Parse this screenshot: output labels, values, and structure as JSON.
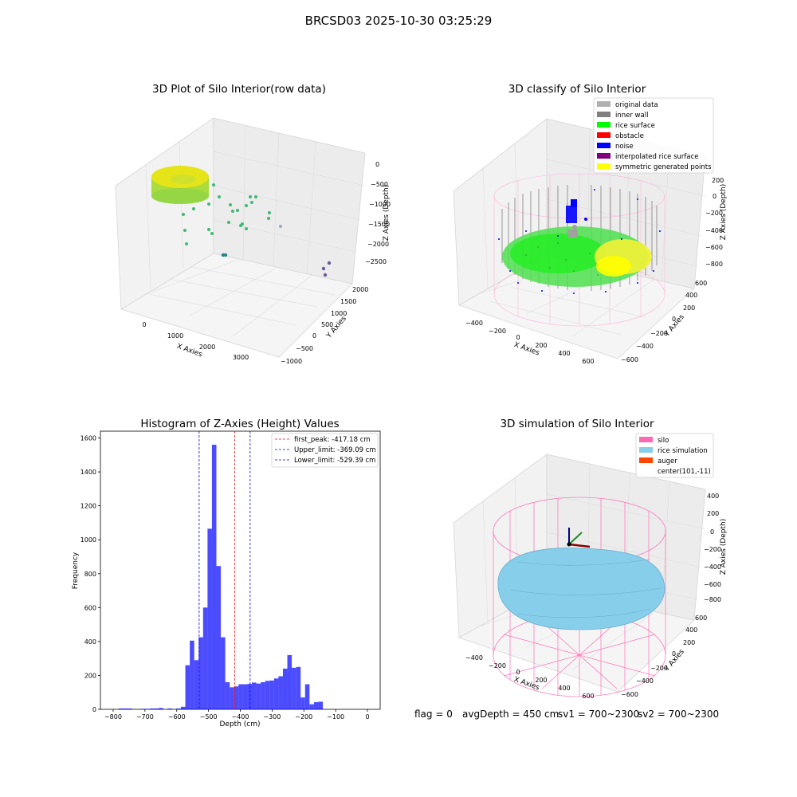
{
  "suptitle": "BRCSD03 2025-10-30 03:25:29",
  "panels": {
    "raw": {
      "title": "3D Plot of Silo Interior(row data)",
      "xlabel": "X Axies",
      "ylabel": "Y Axies",
      "zlabel": "Z Axies (Depth)",
      "xticks": [
        "0",
        "1000",
        "2000",
        "3000"
      ],
      "yticks": [
        "−1000",
        "−500",
        "0",
        "500",
        "1000",
        "1500",
        "2000"
      ],
      "zticks": [
        "0",
        "−500",
        "−1000",
        "−1500",
        "−2000",
        "−2500"
      ]
    },
    "classify": {
      "title": "3D classify of Silo Interior",
      "xlabel": "X Axies",
      "ylabel": "Y Axies",
      "zlabel": "Z Axies (Depth)",
      "xticks": [
        "−400",
        "−200",
        "0",
        "200",
        "400",
        "600"
      ],
      "yticks": [
        "−600",
        "−400",
        "−200",
        "0",
        "200",
        "400",
        "600"
      ],
      "zticks": [
        "200",
        "0",
        "−200",
        "−400",
        "−600",
        "−800"
      ],
      "legend": [
        {
          "label": "original data",
          "color": "#b0b0b0"
        },
        {
          "label": "inner wall",
          "color": "#808080"
        },
        {
          "label": "rice surface",
          "color": "#00ff00"
        },
        {
          "label": "obstacle",
          "color": "#ff0000"
        },
        {
          "label": "noise",
          "color": "#0000ff"
        },
        {
          "label": "interpolated rice surface",
          "color": "#800080"
        },
        {
          "label": "symmetric generated points",
          "color": "#ffff00"
        }
      ]
    },
    "simulation": {
      "title": "3D simulation of Silo Interior",
      "xlabel": "X Axies",
      "ylabel": "Y Axies",
      "zlabel": "Z Axies (Depth)",
      "xticks": [
        "−400",
        "−200",
        "0",
        "200",
        "400",
        "600"
      ],
      "yticks": [
        "−600",
        "−400",
        "−200",
        "0",
        "200",
        "400",
        "600"
      ],
      "zticks": [
        "400",
        "200",
        "0",
        "−200",
        "−400",
        "−600",
        "−800"
      ],
      "legend": [
        {
          "label": "silo",
          "color": "#ff69b4"
        },
        {
          "label": "rice simulation",
          "color": "#87ceeb"
        },
        {
          "label": "auger",
          "color": "#ff4500"
        },
        {
          "label": "center(101,-11)",
          "color": ""
        }
      ]
    }
  },
  "footer": {
    "flag": "flag = 0",
    "avgDepth": "avgDepth = 450 cm",
    "sv1": "sv1 = 700~2300",
    "sv2": "sv2 = 700~2300"
  },
  "chart_data": {
    "type": "bar",
    "title": "Histogram of Z-Axies (Height) Values",
    "xlabel": "Depth (cm)",
    "ylabel": "Frequency",
    "xlim": [
      -840,
      40
    ],
    "ylim": [
      0,
      1640
    ],
    "xticks": [
      -800,
      -700,
      -600,
      -500,
      -400,
      -300,
      -200,
      -100,
      0
    ],
    "yticks": [
      0,
      200,
      400,
      600,
      800,
      1000,
      1200,
      1400,
      1600
    ],
    "bar_color": "#0000ff",
    "bin_width": 13.95,
    "bin_start": -810,
    "values": [
      0,
      0,
      5,
      5,
      5,
      0,
      0,
      3,
      3,
      5,
      5,
      8,
      0,
      5,
      0,
      5,
      15,
      260,
      405,
      290,
      425,
      600,
      1065,
      1560,
      845,
      425,
      160,
      130,
      135,
      148,
      148,
      150,
      158,
      152,
      160,
      168,
      170,
      182,
      195,
      240,
      320,
      245,
      250,
      70,
      148,
      30,
      42,
      45
    ],
    "vlines": [
      {
        "label": "first_peak: -417.18 cm",
        "x": -417.18,
        "color": "#ff0000"
      },
      {
        "label": "Upper_limit: -369.09 cm",
        "x": -369.09,
        "color": "#0000ff"
      },
      {
        "label": "Lower_limit: -529.39 cm",
        "x": -529.39,
        "color": "#0000ff"
      }
    ]
  }
}
